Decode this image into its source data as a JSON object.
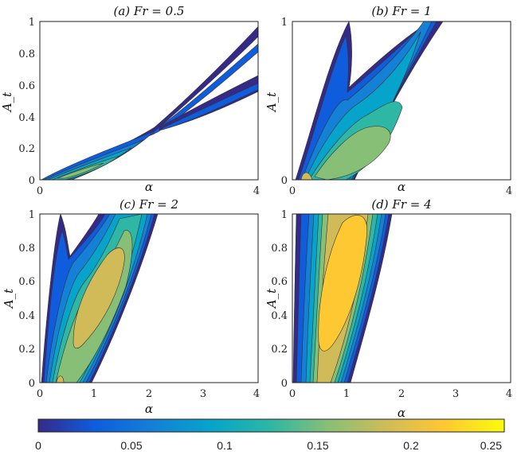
{
  "chart_data": [
    {
      "type": "contour",
      "title": "(a) Fr = 0.5",
      "xlabel": "α",
      "ylabel": "A_t",
      "xlim": [
        0,
        4
      ],
      "ylim": [
        0,
        1
      ],
      "xticks": [
        "0",
        "4"
      ],
      "yticks": [
        "0",
        "0.2",
        "0.4",
        "0.6",
        "0.8",
        "1"
      ]
    },
    {
      "type": "contour",
      "title": "(b) Fr = 1",
      "xlabel": "α",
      "ylabel": "A_t",
      "xlim": [
        0,
        4
      ],
      "ylim": [
        0,
        1
      ],
      "xticks": [
        "0",
        "4"
      ],
      "yticks": [
        "0",
        "1"
      ]
    },
    {
      "type": "contour",
      "title": "(c) Fr = 2",
      "xlabel": "α",
      "ylabel": "A_t",
      "xlim": [
        0,
        4
      ],
      "ylim": [
        0,
        1
      ],
      "xticks": [
        "0",
        "1",
        "2",
        "3",
        "4"
      ],
      "yticks": [
        "0",
        "0.2",
        "0.4",
        "0.6",
        "0.8",
        "1"
      ]
    },
    {
      "type": "contour",
      "title": "(d) Fr = 4",
      "xlabel": "α",
      "ylabel": "A_t",
      "xlim": [
        0,
        4
      ],
      "ylim": [
        0,
        1
      ],
      "xticks": [
        "0",
        "1",
        "2",
        "3",
        "4"
      ],
      "yticks": [
        "0",
        "0.2",
        "0.4",
        "0.6",
        "0.8",
        "1"
      ]
    }
  ],
  "colorbar": {
    "range": [
      0,
      0.25
    ],
    "ticks": [
      "0",
      "0.05",
      "0.1",
      "0.15",
      "0.2",
      "0.25"
    ],
    "colors": [
      "#352a87",
      "#0f5cdd",
      "#1481d6",
      "#06a4ca",
      "#2eb7a4",
      "#87bf77",
      "#d1bb59",
      "#fec832",
      "#f9fb0e"
    ]
  }
}
